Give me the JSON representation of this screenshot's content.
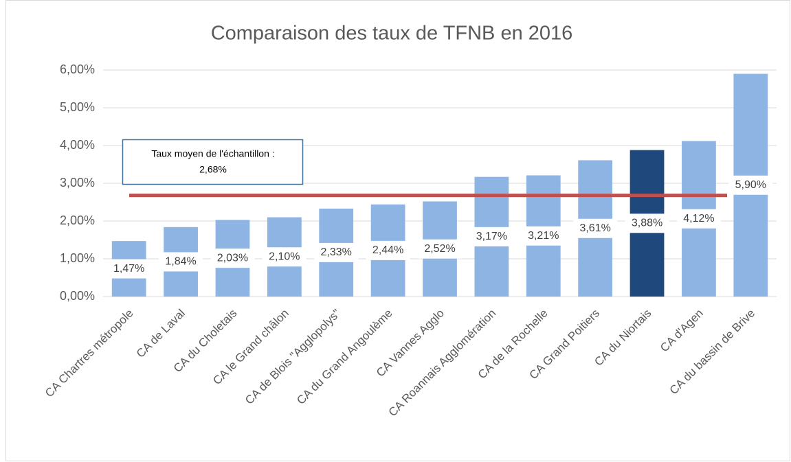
{
  "chart_data": {
    "type": "bar",
    "title": "Comparaison des taux de TFNB en 2016",
    "categories": [
      "CA Chartres métropole",
      "CA de Laval",
      "CA du Choletais",
      "CA le Grand châlon",
      "CA de Blois \"Agglopolys\"",
      "CA du Grand Angoulème",
      "CA Vannes Agglo",
      "CA Roannais Agglomération",
      "CA de la Rochelle",
      "CA Grand Poitiers",
      "CA du Niortais",
      "CA d'Agen",
      "CA du bassin de Brive"
    ],
    "values": [
      1.47,
      1.84,
      2.03,
      2.1,
      2.33,
      2.44,
      2.52,
      3.17,
      3.21,
      3.61,
      3.88,
      4.12,
      5.9
    ],
    "value_labels": [
      "1,47%",
      "1,84%",
      "2,03%",
      "2,10%",
      "2,33%",
      "2,44%",
      "2,52%",
      "3,17%",
      "3,21%",
      "3,61%",
      "3,88%",
      "4,12%",
      "5,90%"
    ],
    "colors": [
      "#8eb4e3",
      "#8eb4e3",
      "#8eb4e3",
      "#8eb4e3",
      "#8eb4e3",
      "#8eb4e3",
      "#8eb4e3",
      "#8eb4e3",
      "#8eb4e3",
      "#8eb4e3",
      "#1f497d",
      "#8eb4e3",
      "#8eb4e3"
    ],
    "ylim": [
      0,
      6
    ],
    "yticks": [
      {
        "value": 0,
        "label": "0,00%"
      },
      {
        "value": 1,
        "label": "1,00%"
      },
      {
        "value": 2,
        "label": "2,00%"
      },
      {
        "value": 3,
        "label": "3,00%"
      },
      {
        "value": 4,
        "label": "4,00%"
      },
      {
        "value": 5,
        "label": "5,00%"
      },
      {
        "value": 6,
        "label": "6,00%"
      }
    ],
    "grid": true,
    "reference_line": {
      "value": 2.68,
      "label": "2,68%",
      "color": "#c0504d"
    },
    "annotation": "Taux moyen de l'échantillon :"
  }
}
